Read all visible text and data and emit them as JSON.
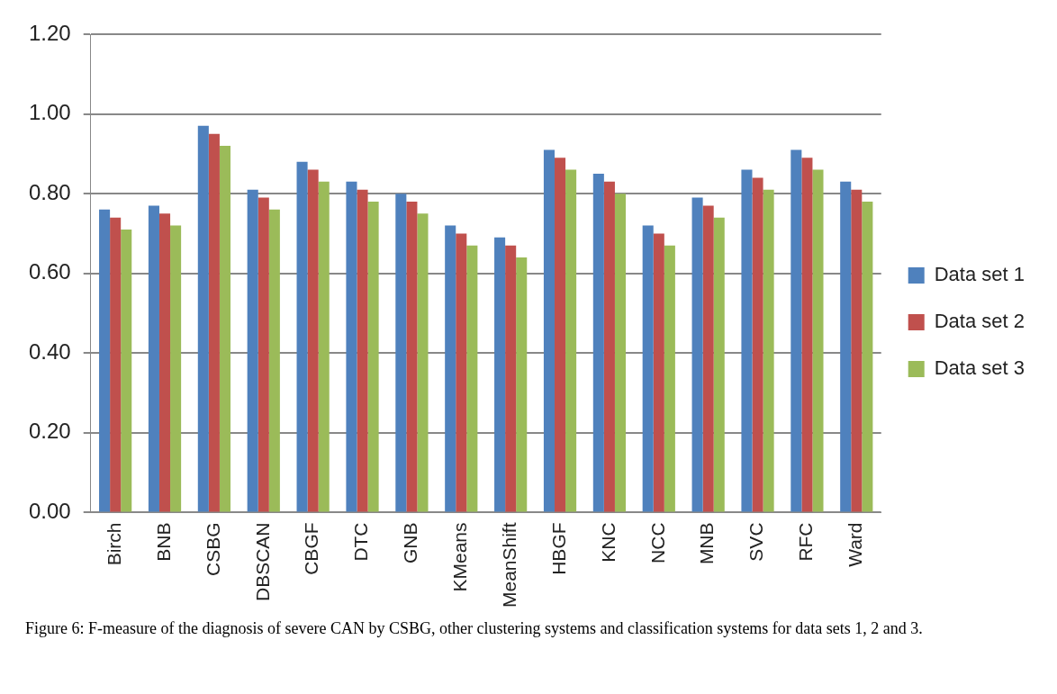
{
  "chart_data": {
    "type": "bar",
    "categories": [
      "Birch",
      "BNB",
      "CSBG",
      "DBSCAN",
      "CBGF",
      "DTC",
      "GNB",
      "KMeans",
      "MeanShift",
      "HBGF",
      "KNC",
      "NCC",
      "MNB",
      "SVC",
      "RFC",
      "Ward"
    ],
    "series": [
      {
        "name": "Data set 1",
        "color": "#4f81bd",
        "values": [
          0.76,
          0.77,
          0.97,
          0.81,
          0.88,
          0.83,
          0.8,
          0.72,
          0.69,
          0.91,
          0.85,
          0.72,
          0.79,
          0.86,
          0.91,
          0.83
        ]
      },
      {
        "name": "Data set 2",
        "color": "#c0504d",
        "values": [
          0.74,
          0.75,
          0.95,
          0.79,
          0.86,
          0.81,
          0.78,
          0.7,
          0.67,
          0.89,
          0.83,
          0.7,
          0.77,
          0.84,
          0.89,
          0.81
        ]
      },
      {
        "name": "Data set 3",
        "color": "#9bbb59",
        "values": [
          0.71,
          0.72,
          0.92,
          0.76,
          0.83,
          0.78,
          0.75,
          0.67,
          0.64,
          0.86,
          0.8,
          0.67,
          0.74,
          0.81,
          0.86,
          0.78
        ]
      }
    ],
    "ylim": [
      0,
      1.2
    ],
    "yticks": [
      {
        "value": 0,
        "label": "0.00"
      },
      {
        "value": 0.2,
        "label": "0.20"
      },
      {
        "value": 0.4,
        "label": "0.40"
      },
      {
        "value": 0.6,
        "label": "0.60"
      },
      {
        "value": 0.8,
        "label": "0.80"
      },
      {
        "value": 1,
        "label": "1.00"
      },
      {
        "value": 1.2,
        "label": "1.20"
      }
    ],
    "grid": "y",
    "legend": "right",
    "annotations": [
      "Figure 6: F-measure of the diagnosis of severe CAN by CSBG, other clustering systems and classification systems for data sets 1, 2 and 3."
    ]
  }
}
